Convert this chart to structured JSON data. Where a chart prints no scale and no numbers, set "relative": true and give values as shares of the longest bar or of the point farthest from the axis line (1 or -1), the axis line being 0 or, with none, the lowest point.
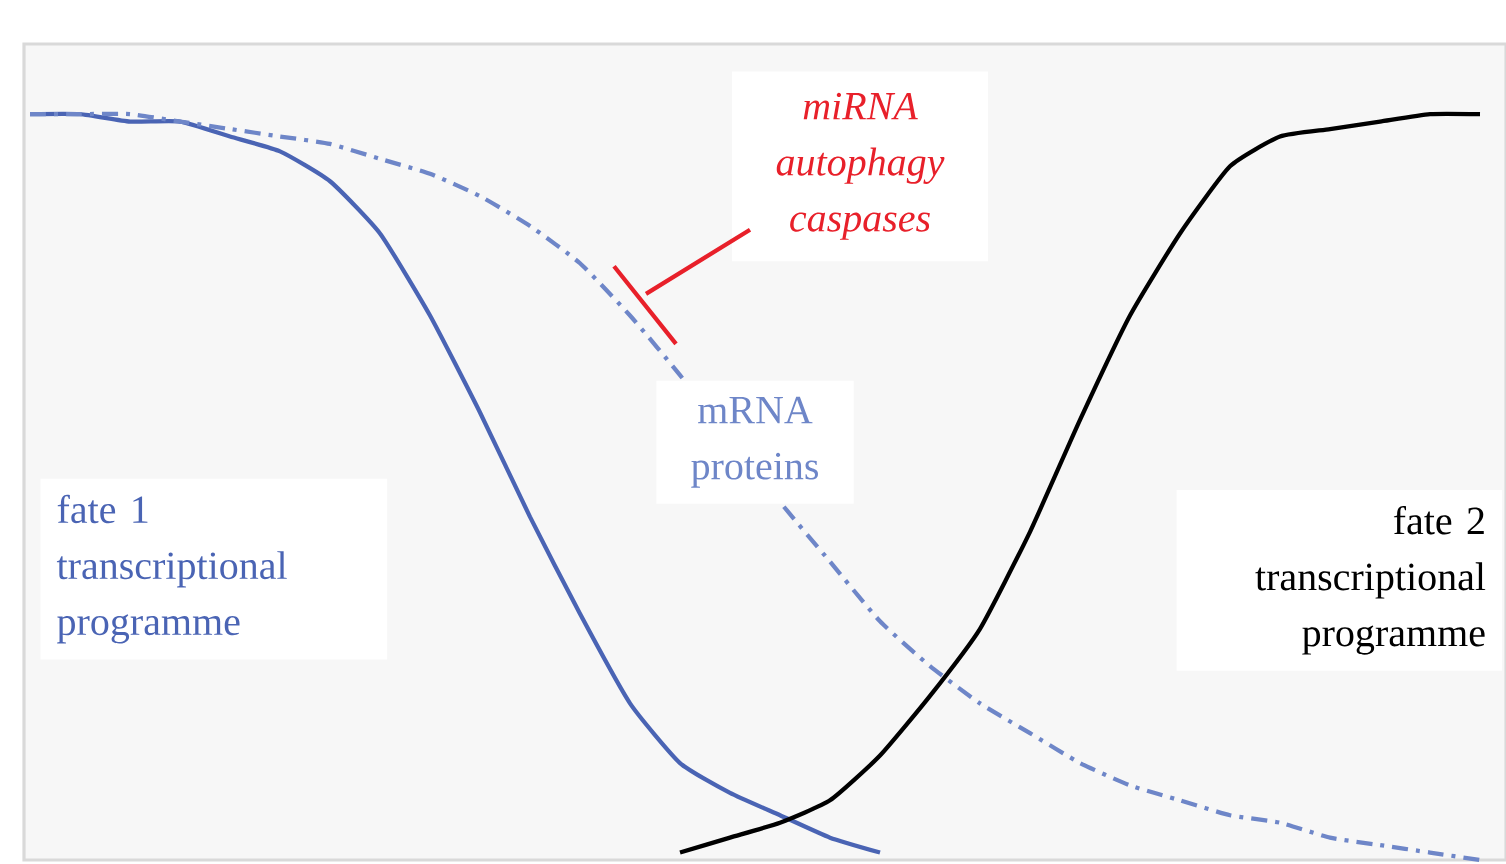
{
  "chart_data": {
    "type": "line",
    "relative": true,
    "marker": "none",
    "categories": [
      null,
      null,
      null,
      null,
      null,
      null,
      null,
      null,
      null,
      null,
      null,
      null,
      null,
      null,
      null,
      null,
      null,
      null,
      null,
      null,
      null,
      null,
      null,
      null,
      null,
      null,
      null,
      null,
      null,
      null
    ],
    "annotations": [
      "miRNA autophagy caspases"
    ],
    "series": [
      {
        "name": "fate 1 transcriptional programme",
        "color": "#4a64b4",
        "line_style": "solid",
        "values": [
          1,
          1,
          0.99,
          0.99,
          0.97,
          0.95,
          0.91,
          0.84,
          0.73,
          0.6,
          0.46,
          0.33,
          0.21,
          0.13,
          0.09,
          0.06,
          0.03,
          0.01,
          null,
          null,
          null,
          null,
          null,
          null,
          null,
          null,
          null,
          null,
          null,
          null
        ]
      },
      {
        "name": "mRNA proteins",
        "color": "#6e86c8",
        "line_style": "dashed",
        "values": [
          1,
          1,
          1,
          0.99,
          0.98,
          0.97,
          0.96,
          0.94,
          0.92,
          0.89,
          0.85,
          0.8,
          0.73,
          0.65,
          null,
          0.48,
          0.4,
          0.32,
          0.26,
          0.21,
          0.17,
          0.13,
          0.1,
          0.08,
          0.06,
          0.05,
          0.03,
          0.02,
          0.01,
          0
        ]
      },
      {
        "name": "fate 2 transcriptional programme",
        "color": "#000000",
        "line_style": "solid",
        "values": [
          null,
          null,
          null,
          null,
          null,
          null,
          null,
          null,
          null,
          null,
          null,
          null,
          null,
          0.01,
          0.03,
          0.05,
          0.08,
          0.14,
          0.22,
          0.31,
          0.44,
          0.59,
          0.73,
          0.84,
          0.93,
          0.97,
          0.98,
          0.99,
          1,
          1
        ]
      }
    ]
  }
}
